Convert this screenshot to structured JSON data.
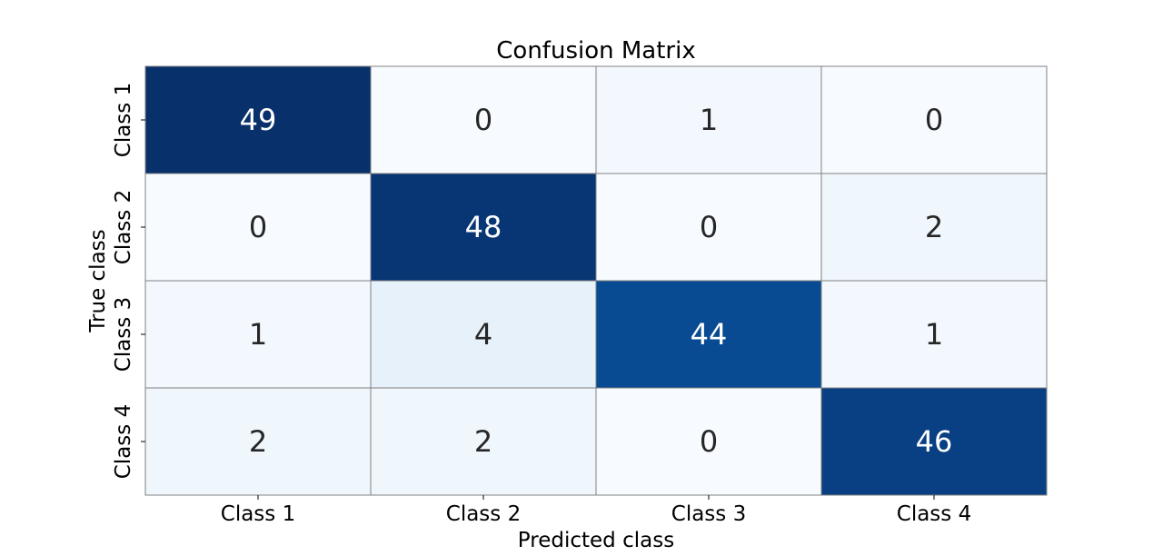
{
  "chart_data": {
    "type": "heatmap",
    "title": "Confusion Matrix",
    "xlabel": "Predicted class",
    "ylabel": "True class",
    "x_categories": [
      "Class 1",
      "Class 2",
      "Class 3",
      "Class 4"
    ],
    "y_categories": [
      "Class 1",
      "Class 2",
      "Class 3",
      "Class 4"
    ],
    "values": [
      [
        49,
        0,
        1,
        0
      ],
      [
        0,
        48,
        0,
        2
      ],
      [
        1,
        4,
        44,
        1
      ],
      [
        2,
        2,
        0,
        46
      ]
    ],
    "colormap": "Blues",
    "vmin": 0,
    "vmax": 49,
    "colorbar": false,
    "grid_line_color": "#808080"
  }
}
